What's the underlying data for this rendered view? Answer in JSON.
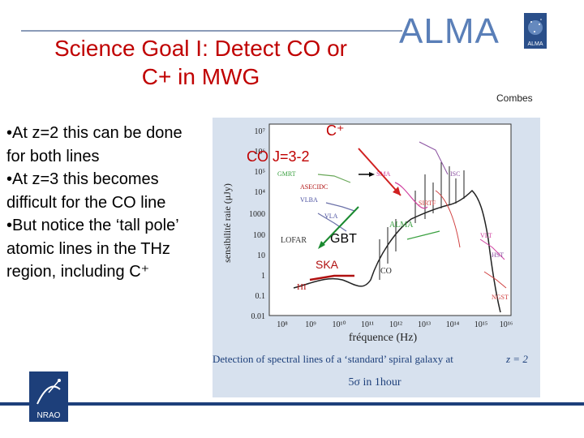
{
  "slide": {
    "title_line1": "Science Goal I: Detect CO or",
    "title_line2": "C+ in MWG",
    "logo_text": "ALMA",
    "badge_text": "ALMA",
    "author": "Combes",
    "bullets": [
      "•At z=2 this can be done for both lines",
      "•At z=3 this becomes difficult for the CO line",
      "•But notice the ‘tall pole’ atomic lines in the THz region, including C⁺"
    ],
    "nrao_text": "NRAO"
  },
  "figure": {
    "y_ticks": [
      "10⁷",
      "10⁶",
      "10⁵",
      "10⁴",
      "1000",
      "100",
      "10",
      "1",
      "0.1",
      "0.01"
    ],
    "x_ticks": [
      "10⁸",
      "10⁹",
      "10¹⁰",
      "10¹¹",
      "10¹²",
      "10¹³",
      "10¹⁴",
      "10¹⁵",
      "10¹⁶"
    ],
    "y_label": "sensibilité raie (μJy)",
    "x_label": "fréquence (Hz)",
    "caption_line1": "Detection of spectral lines of a ‘standard’ spiral galaxy at",
    "caption_z": "z = 2",
    "caption_line2": "5σ  in 1hour",
    "instruments": {
      "gmrt": "GMRT",
      "asecidc": "ASECIDC",
      "vlba": "VLBA",
      "vla": "VLA",
      "lofar": "LOFAR",
      "ska": "SKA",
      "hi": "HI",
      "sma": "SMA",
      "alma": "ALMA",
      "co": "CO",
      "sirtf": "SIRTF",
      "isc": "ISC",
      "vlt": "VLT",
      "hst": "HST",
      "ngst": "NGST"
    },
    "annotations": {
      "cplus": "C⁺",
      "co32": "CO J=3-2",
      "gbt": "GBT"
    }
  }
}
